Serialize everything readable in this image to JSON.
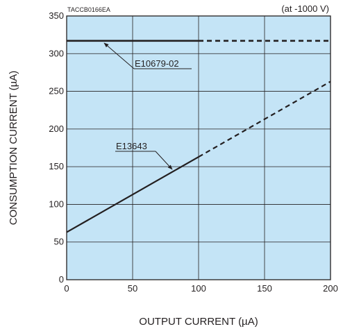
{
  "figure_code": "TACCB0166EA",
  "chart_data": {
    "type": "line",
    "xlabel": "OUTPUT CURRENT (µA)",
    "ylabel": "CONSUMPTION CURRENT (µA)",
    "condition": "(at -1000 V)",
    "xlim": [
      0,
      200
    ],
    "ylim": [
      0,
      350
    ],
    "x_ticks": [
      "0",
      "50",
      "100",
      "150",
      "200"
    ],
    "y_ticks": [
      "0",
      "50",
      "100",
      "150",
      "200",
      "250",
      "300",
      "350"
    ],
    "grid": true,
    "background_color": "#c4e4f6",
    "line_color": "#231f20",
    "series": [
      {
        "name": "E10679-02",
        "solid": [
          [
            0,
            317
          ],
          [
            100,
            317
          ]
        ],
        "dashed": [
          [
            100,
            317
          ],
          [
            200,
            317
          ]
        ]
      },
      {
        "name": "E13643",
        "solid": [
          [
            0,
            63
          ],
          [
            100,
            163
          ]
        ],
        "dashed": [
          [
            100,
            163
          ],
          [
            200,
            263
          ]
        ]
      }
    ]
  }
}
